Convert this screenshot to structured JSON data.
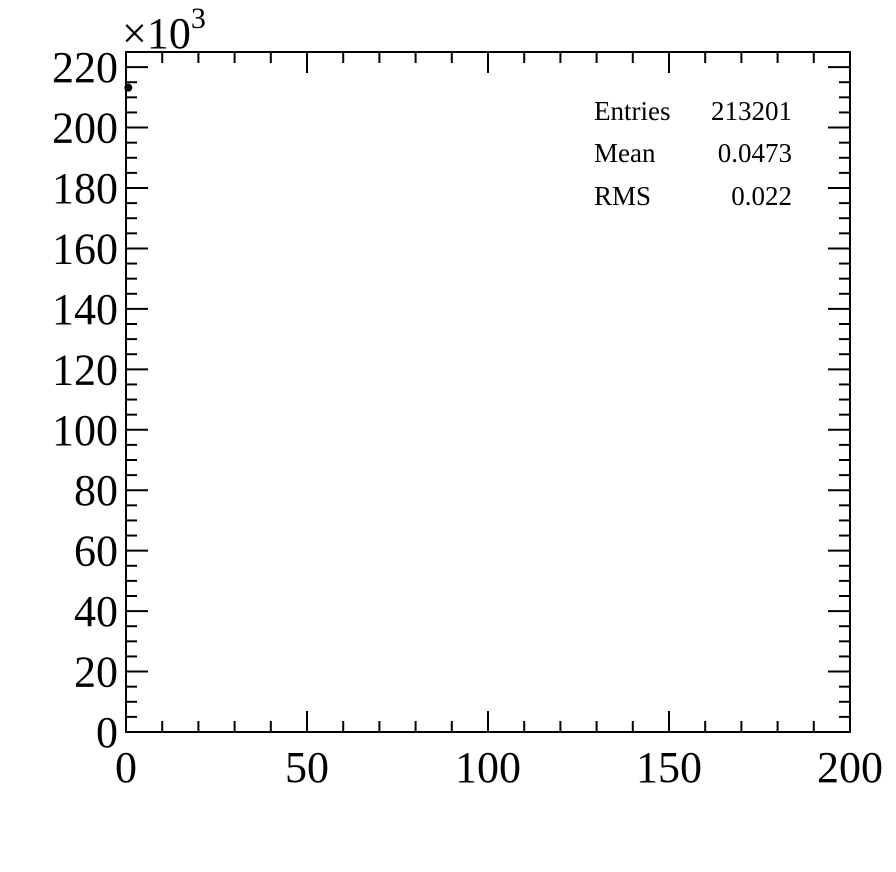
{
  "chart_data": {
    "type": "scatter",
    "title": "",
    "xlabel": "",
    "ylabel": "",
    "xlim": [
      0,
      200
    ],
    "ylim": [
      0,
      225
    ],
    "x_ticks": [
      "0",
      "50",
      "100",
      "150",
      "200"
    ],
    "y_ticks": [
      "0",
      "20",
      "40",
      "60",
      "80",
      "100",
      "120",
      "140",
      "160",
      "180",
      "200",
      "220"
    ],
    "y_multiplier": {
      "base": "×10",
      "exponent": "3"
    },
    "series": [
      {
        "points": [
          {
            "x": 0.5,
            "y": 213.2
          }
        ]
      }
    ],
    "marker_color": "#000000",
    "grid": false,
    "stats_box": {
      "placement": "top-right",
      "rows": [
        {
          "label": "Entries",
          "value": "213201"
        },
        {
          "label": "Mean",
          "value": "0.0473"
        },
        {
          "label": "RMS",
          "value": "0.022"
        }
      ]
    }
  }
}
